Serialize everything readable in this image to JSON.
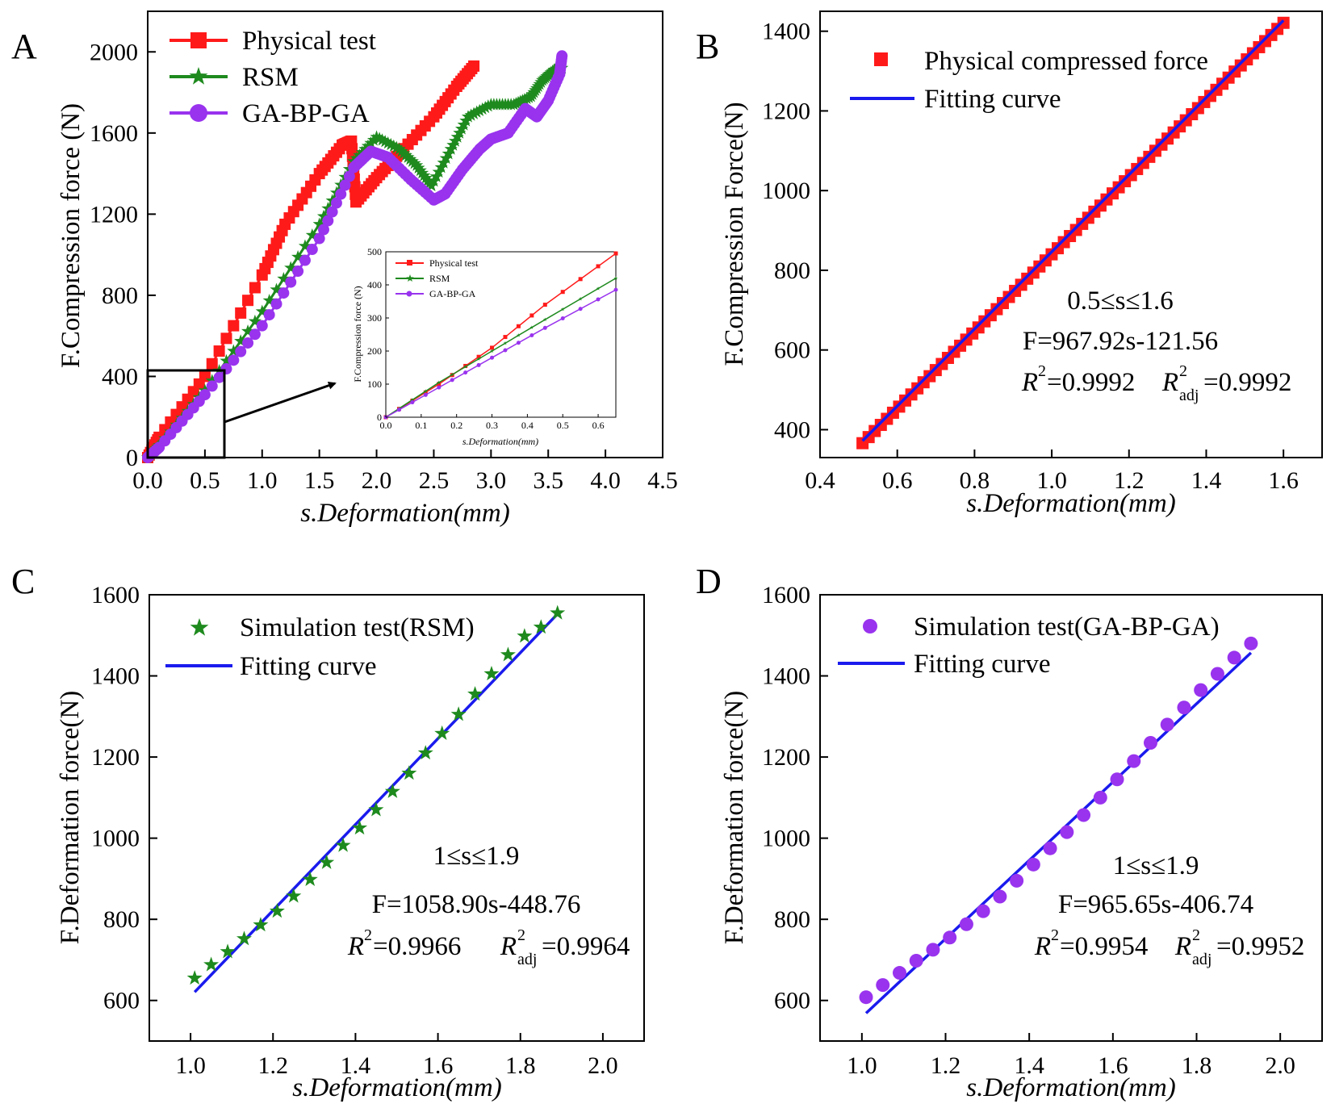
{
  "figure": {
    "panels": [
      "A",
      "B",
      "C",
      "D"
    ]
  },
  "colors": {
    "physical": "#ff1a1a",
    "rsm": "#1e8a1e",
    "ga": "#9933ee",
    "fit": "#1a1aee",
    "axis": "#000000"
  },
  "chart_data": [
    {
      "id": "A",
      "type": "line",
      "xlabel": "s.Deformation(mm)",
      "ylabel": "F.Compression force (N)",
      "xlim": [
        0,
        4.5
      ],
      "ylim": [
        0,
        2200
      ],
      "xticks": [
        "0.0",
        "0.5",
        "1.0",
        "1.5",
        "2.0",
        "2.5",
        "3.0",
        "3.5",
        "4.0",
        "4.5"
      ],
      "yticks": [
        "0",
        "400",
        "800",
        "1200",
        "1600",
        "2000"
      ],
      "series": [
        {
          "name": "Physical test",
          "color": "#ff1a1a",
          "marker": "square",
          "points": [
            [
              0,
              0
            ],
            [
              0.1,
              100
            ],
            [
              0.5,
              400
            ],
            [
              1.0,
              900
            ],
            [
              1.2,
              1150
            ],
            [
              1.5,
              1400
            ],
            [
              1.7,
              1540
            ],
            [
              1.78,
              1560
            ],
            [
              1.82,
              1260
            ],
            [
              2.0,
              1380
            ],
            [
              2.2,
              1500
            ],
            [
              2.5,
              1680
            ],
            [
              2.7,
              1830
            ],
            [
              2.85,
              1930
            ]
          ]
        },
        {
          "name": "RSM",
          "color": "#1e8a1e",
          "marker": "star",
          "points": [
            [
              0,
              0
            ],
            [
              0.1,
              60
            ],
            [
              0.5,
              330
            ],
            [
              1.0,
              720
            ],
            [
              1.5,
              1150
            ],
            [
              1.8,
              1460
            ],
            [
              2.0,
              1580
            ],
            [
              2.2,
              1520
            ],
            [
              2.35,
              1440
            ],
            [
              2.48,
              1340
            ],
            [
              2.65,
              1520
            ],
            [
              2.8,
              1680
            ],
            [
              3.0,
              1740
            ],
            [
              3.2,
              1740
            ],
            [
              3.35,
              1780
            ],
            [
              3.45,
              1860
            ],
            [
              3.55,
              1910
            ],
            [
              3.62,
              1920
            ]
          ]
        },
        {
          "name": "GA-BP-GA",
          "color": "#9933ee",
          "marker": "circle",
          "points": [
            [
              0,
              0
            ],
            [
              0.1,
              50
            ],
            [
              0.5,
              310
            ],
            [
              1.0,
              650
            ],
            [
              1.5,
              1080
            ],
            [
              1.8,
              1430
            ],
            [
              1.95,
              1510
            ],
            [
              2.1,
              1480
            ],
            [
              2.3,
              1370
            ],
            [
              2.5,
              1270
            ],
            [
              2.6,
              1300
            ],
            [
              2.75,
              1420
            ],
            [
              2.9,
              1520
            ],
            [
              3.0,
              1570
            ],
            [
              3.15,
              1600
            ],
            [
              3.3,
              1720
            ],
            [
              3.4,
              1680
            ],
            [
              3.5,
              1760
            ],
            [
              3.6,
              1890
            ],
            [
              3.62,
              1980
            ]
          ]
        }
      ],
      "inset": {
        "xlabel": "s.Deformation(mm)",
        "ylabel": "F.Compression force (N)",
        "xlim": [
          0,
          0.65
        ],
        "ylim": [
          0,
          500
        ],
        "xticks": [
          "0.0",
          "0.1",
          "0.2",
          "0.3",
          "0.4",
          "0.5",
          "0.6"
        ],
        "yticks": [
          "0",
          "100",
          "200",
          "300",
          "400",
          "500"
        ],
        "series": [
          {
            "name": "Physical test",
            "color": "#ff1a1a",
            "marker": "square",
            "points": [
              [
                0,
                0
              ],
              [
                0.15,
                100
              ],
              [
                0.3,
                210
              ],
              [
                0.45,
                340
              ],
              [
                0.65,
                495
              ]
            ]
          },
          {
            "name": "RSM",
            "color": "#1e8a1e",
            "marker": "star",
            "points": [
              [
                0,
                0
              ],
              [
                0.15,
                105
              ],
              [
                0.3,
                200
              ],
              [
                0.45,
                295
              ],
              [
                0.65,
                420
              ]
            ]
          },
          {
            "name": "GA-BP-GA",
            "color": "#9933ee",
            "marker": "circle",
            "points": [
              [
                0,
                0
              ],
              [
                0.15,
                90
              ],
              [
                0.3,
                180
              ],
              [
                0.45,
                270
              ],
              [
                0.65,
                385
              ]
            ]
          }
        ]
      }
    },
    {
      "id": "B",
      "type": "scatter",
      "xlabel": "s.Deformation(mm)",
      "ylabel": "F.Compression Force(N)",
      "xlim": [
        0.4,
        1.7
      ],
      "ylim": [
        330,
        1450
      ],
      "xticks": [
        "0.4",
        "0.6",
        "0.8",
        "1.0",
        "1.2",
        "1.4",
        "1.6"
      ],
      "yticks": [
        "400",
        "600",
        "800",
        "1000",
        "1200",
        "1400"
      ],
      "series": [
        {
          "name": "Physical compressed force",
          "color": "#ff1a1a",
          "marker": "square",
          "x_range": [
            0.51,
            1.6
          ],
          "count": 70
        },
        {
          "name": "Fitting curve",
          "color": "#1a1aee",
          "type": "line",
          "slope": 967.92,
          "intercept": -121.56,
          "x_range": [
            0.51,
            1.6
          ]
        }
      ],
      "annotation": {
        "range": "0.5≤s≤1.6",
        "equation": "F=967.92s-121.56",
        "r2": "=0.9992",
        "r2adj": "=0.9992"
      }
    },
    {
      "id": "C",
      "type": "scatter",
      "xlabel": "s.Deformation(mm)",
      "ylabel": "F.Deformation force(N)",
      "xlim": [
        0.9,
        2.1
      ],
      "ylim": [
        500,
        1600
      ],
      "xticks": [
        "1.0",
        "1.2",
        "1.4",
        "1.6",
        "1.8",
        "2.0"
      ],
      "yticks": [
        "600",
        "800",
        "1000",
        "1200",
        "1400",
        "1600"
      ],
      "series": [
        {
          "name": "Simulation test(RSM)",
          "color": "#1e8a1e",
          "marker": "star",
          "points": [
            [
              1.01,
              655
            ],
            [
              1.05,
              688
            ],
            [
              1.09,
              720
            ],
            [
              1.13,
              752
            ],
            [
              1.17,
              786
            ],
            [
              1.21,
              820
            ],
            [
              1.25,
              857
            ],
            [
              1.29,
              898
            ],
            [
              1.33,
              940
            ],
            [
              1.37,
              982
            ],
            [
              1.41,
              1025
            ],
            [
              1.45,
              1070
            ],
            [
              1.49,
              1115
            ],
            [
              1.53,
              1160
            ],
            [
              1.57,
              1210
            ],
            [
              1.61,
              1258
            ],
            [
              1.65,
              1305
            ],
            [
              1.69,
              1355
            ],
            [
              1.73,
              1405
            ],
            [
              1.77,
              1452
            ],
            [
              1.81,
              1498
            ],
            [
              1.85,
              1520
            ],
            [
              1.89,
              1555
            ]
          ]
        },
        {
          "name": "Fitting curve",
          "color": "#1a1aee",
          "type": "line",
          "slope": 1058.9,
          "intercept": -448.76,
          "x_range": [
            1.01,
            1.89
          ]
        }
      ],
      "annotation": {
        "range": "1≤s≤1.9",
        "equation": "F=1058.90s-448.76",
        "r2": "=0.9966",
        "r2adj": "=0.9964"
      }
    },
    {
      "id": "D",
      "type": "scatter",
      "xlabel": "s.Deformation(mm)",
      "ylabel": "F.Deformation force(N)",
      "xlim": [
        0.9,
        2.1
      ],
      "ylim": [
        500,
        1600
      ],
      "xticks": [
        "1.0",
        "1.2",
        "1.4",
        "1.6",
        "1.8",
        "2.0"
      ],
      "yticks": [
        "600",
        "800",
        "1000",
        "1200",
        "1400",
        "1600"
      ],
      "series": [
        {
          "name": "Simulation test(GA-BP-GA)",
          "color": "#9933ee",
          "marker": "circle",
          "points": [
            [
              1.01,
              608
            ],
            [
              1.05,
              638
            ],
            [
              1.09,
              668
            ],
            [
              1.13,
              698
            ],
            [
              1.17,
              725
            ],
            [
              1.21,
              755
            ],
            [
              1.25,
              788
            ],
            [
              1.29,
              820
            ],
            [
              1.33,
              856
            ],
            [
              1.37,
              895
            ],
            [
              1.41,
              935
            ],
            [
              1.45,
              975
            ],
            [
              1.49,
              1015
            ],
            [
              1.53,
              1057
            ],
            [
              1.57,
              1100
            ],
            [
              1.61,
              1145
            ],
            [
              1.65,
              1190
            ],
            [
              1.69,
              1235
            ],
            [
              1.73,
              1280
            ],
            [
              1.77,
              1322
            ],
            [
              1.81,
              1365
            ],
            [
              1.85,
              1405
            ],
            [
              1.89,
              1445
            ],
            [
              1.93,
              1480
            ]
          ]
        },
        {
          "name": "Fitting curve",
          "color": "#1a1aee",
          "type": "line",
          "slope": 965.65,
          "intercept": -406.74,
          "x_range": [
            1.01,
            1.93
          ]
        }
      ],
      "annotation": {
        "range": "1≤s≤1.9",
        "equation": "F=965.65s-406.74",
        "r2": "=0.9954",
        "r2adj": "=0.9952"
      }
    }
  ]
}
